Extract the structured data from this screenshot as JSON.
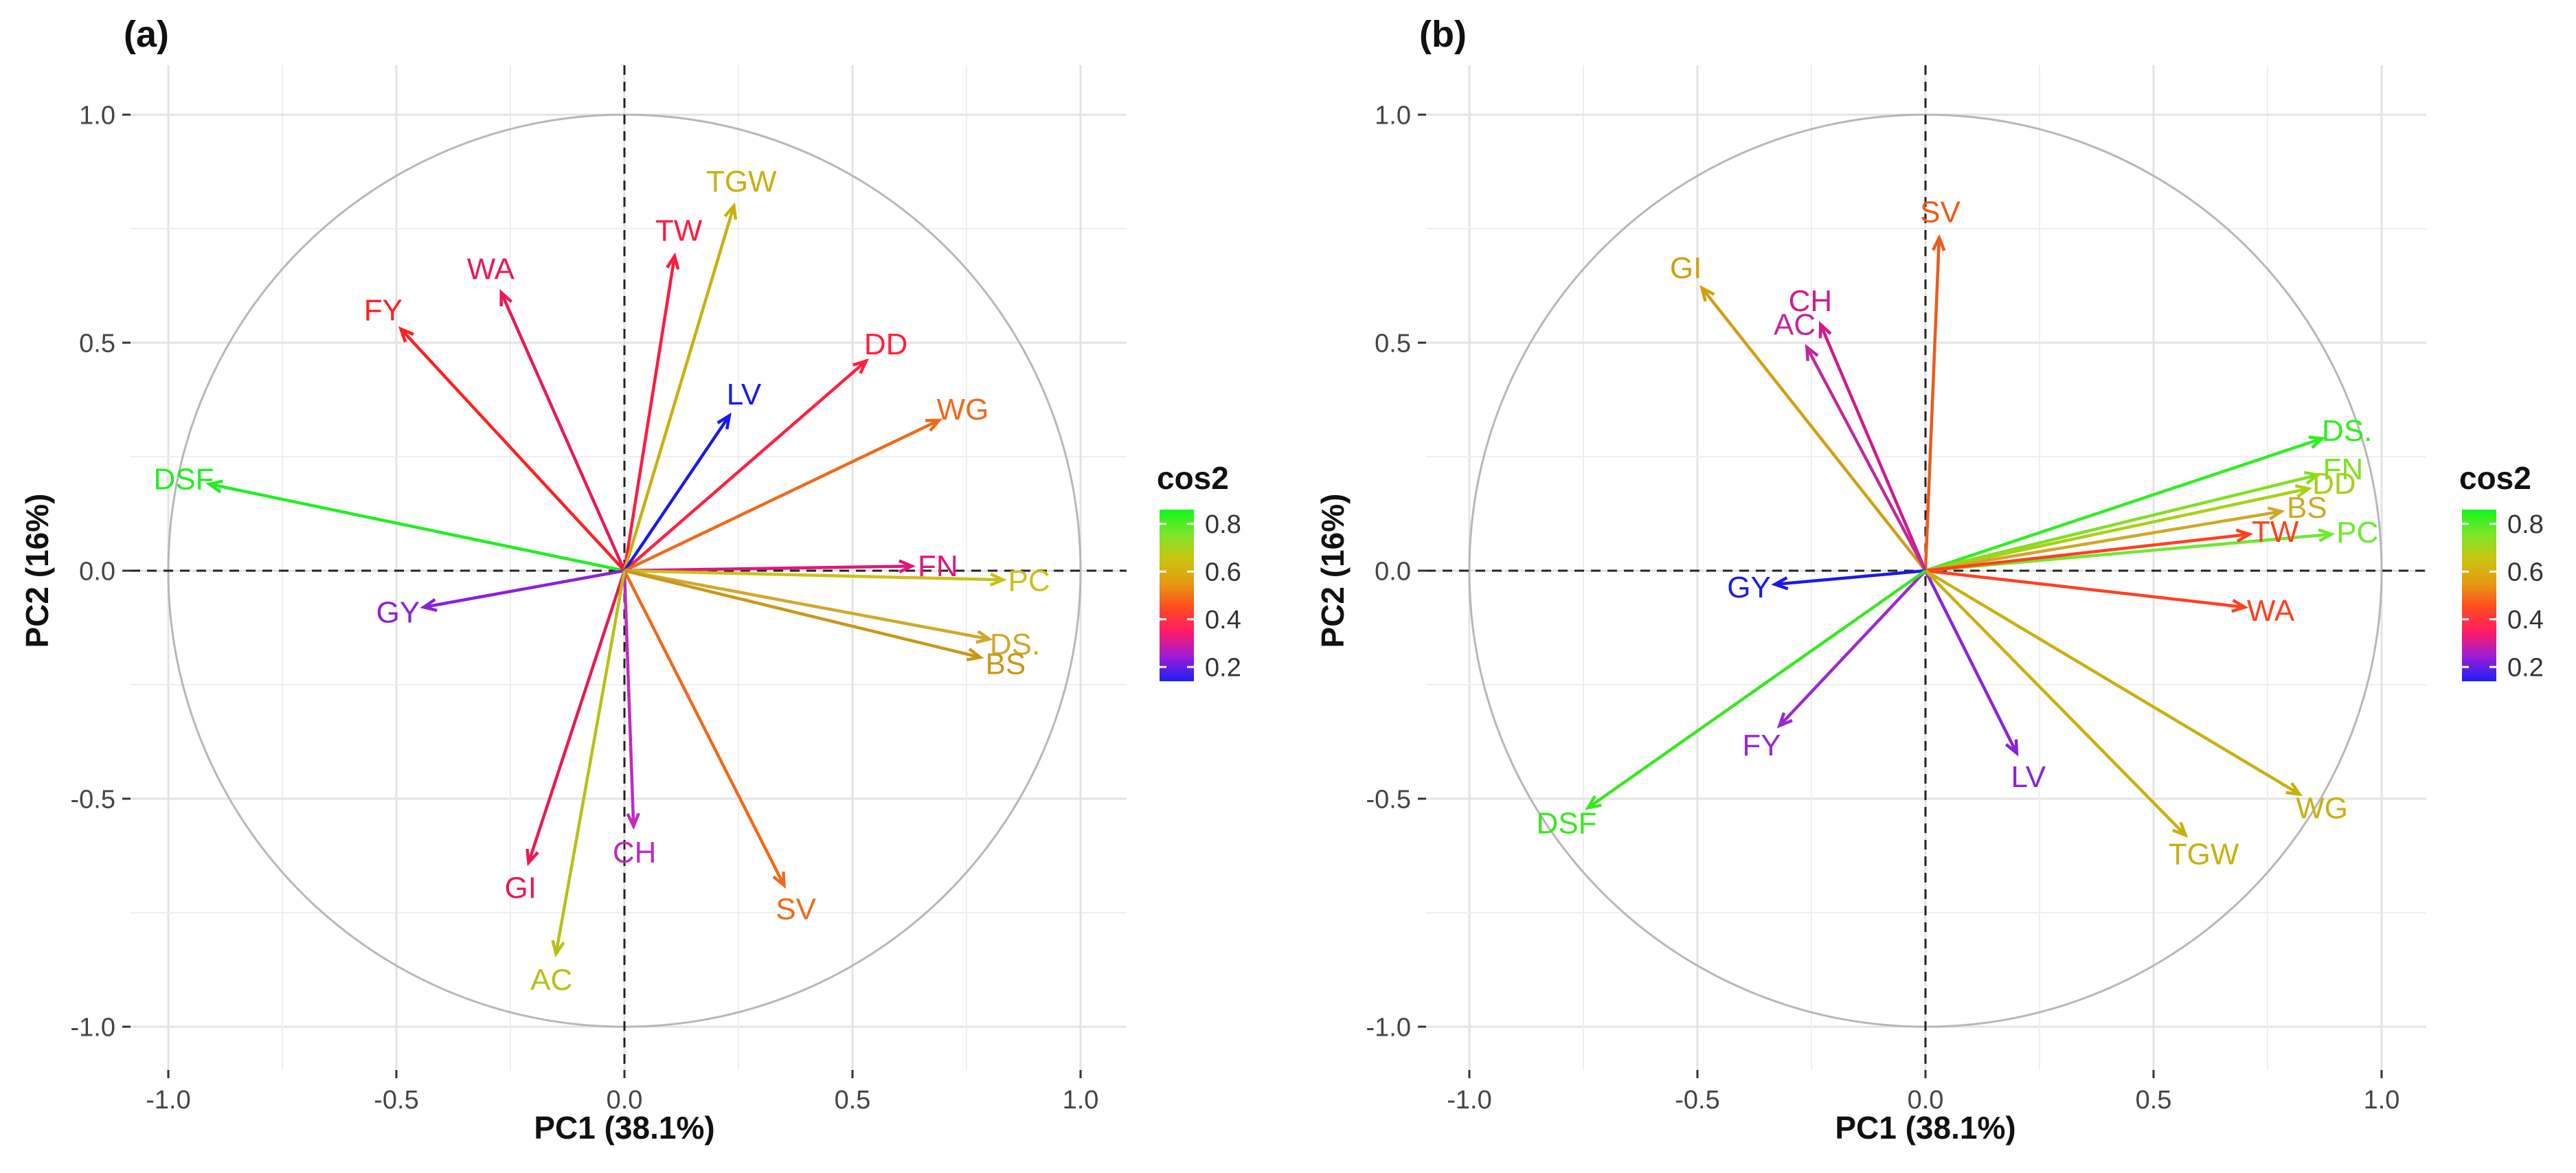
{
  "colorbar": {
    "title": "cos2",
    "ticks": [
      "0.8",
      "0.6",
      "0.4",
      "0.2"
    ],
    "tick_values": [
      0.8,
      0.6,
      0.4,
      0.2
    ],
    "range": [
      0.14,
      0.86
    ],
    "gradient": [
      "#1d1ff5",
      "#9b1cd8",
      "#ff1a6a",
      "#ff4b1e",
      "#e59a10",
      "#c9c510",
      "#7be62b",
      "#14f51c"
    ]
  },
  "chart_data": [
    {
      "type": "pca-variable-correlation-circle",
      "panel_label": "(a)",
      "xlabel": "PC1 (38.1%)",
      "ylabel": "PC2 (16%)",
      "xlim": [
        -1.0,
        1.0
      ],
      "ylim": [
        -1.0,
        1.0
      ],
      "xticks": [
        "-1.0",
        "-0.5",
        "0.0",
        "0.5",
        "1.0"
      ],
      "yticks": [
        "-1.0",
        "-0.5",
        "0.0",
        "0.5",
        "1.0"
      ],
      "color_metric": "cos2",
      "vectors": [
        {
          "name": "DSF",
          "x": -0.91,
          "y": 0.19,
          "cos2": 0.85,
          "color": "#22ee22"
        },
        {
          "name": "FY",
          "x": -0.49,
          "y": 0.53,
          "cos2": 0.46,
          "color": "#ff2020"
        },
        {
          "name": "WA",
          "x": -0.27,
          "y": 0.61,
          "cos2": 0.41,
          "color": "#e81a55"
        },
        {
          "name": "TW",
          "x": 0.11,
          "y": 0.69,
          "cos2": 0.43,
          "color": "#ff1a40"
        },
        {
          "name": "TGW",
          "x": 0.24,
          "y": 0.8,
          "cos2": 0.63,
          "color": "#c8b010"
        },
        {
          "name": "DD",
          "x": 0.53,
          "y": 0.46,
          "cos2": 0.46,
          "color": "#ff2040"
        },
        {
          "name": "LV",
          "x": 0.23,
          "y": 0.34,
          "cos2": 0.14,
          "color": "#1a1ae8"
        },
        {
          "name": "WG",
          "x": 0.69,
          "y": 0.33,
          "cos2": 0.56,
          "color": "#ee6a1a"
        },
        {
          "name": "FN",
          "x": 0.63,
          "y": 0.01,
          "cos2": 0.39,
          "color": "#e0167a"
        },
        {
          "name": "PC",
          "x": 0.83,
          "y": -0.02,
          "cos2": 0.68,
          "color": "#ccc01a"
        },
        {
          "name": "DS.",
          "x": 0.8,
          "y": -0.15,
          "cos2": 0.66,
          "color": "#d0a82a"
        },
        {
          "name": "BS",
          "x": 0.78,
          "y": -0.19,
          "cos2": 0.64,
          "color": "#c8981a"
        },
        {
          "name": "GY",
          "x": -0.44,
          "y": -0.08,
          "cos2": 0.21,
          "color": "#8a22d8"
        },
        {
          "name": "CH",
          "x": 0.02,
          "y": -0.56,
          "cos2": 0.31,
          "color": "#c02ac0"
        },
        {
          "name": "GI",
          "x": -0.21,
          "y": -0.64,
          "cos2": 0.46,
          "color": "#e81a50"
        },
        {
          "name": "SV",
          "x": 0.35,
          "y": -0.69,
          "cos2": 0.59,
          "color": "#ee6a1a"
        },
        {
          "name": "AC",
          "x": -0.15,
          "y": -0.84,
          "cos2": 0.73,
          "color": "#b8c015"
        }
      ]
    },
    {
      "type": "pca-variable-correlation-circle",
      "panel_label": "(b)",
      "xlabel": "PC1 (38.1%)",
      "ylabel": "PC2 (16%)",
      "xlim": [
        -1.0,
        1.0
      ],
      "ylim": [
        -1.0,
        1.0
      ],
      "xticks": [
        "-1.0",
        "-0.5",
        "0.0",
        "0.5",
        "1.0"
      ],
      "yticks": [
        "-1.0",
        "-0.5",
        "0.0",
        "0.5",
        "1.0"
      ],
      "color_metric": "cos2",
      "vectors": [
        {
          "name": "SV",
          "x": 0.03,
          "y": 0.73,
          "cos2": 0.53,
          "color": "#ee5a1a"
        },
        {
          "name": "GI",
          "x": -0.49,
          "y": 0.62,
          "cos2": 0.62,
          "color": "#d0a010"
        },
        {
          "name": "CH",
          "x": -0.23,
          "y": 0.54,
          "cos2": 0.35,
          "color": "#d01a8a"
        },
        {
          "name": "AC",
          "x": -0.26,
          "y": 0.49,
          "cos2": 0.31,
          "color": "#c02a9a"
        },
        {
          "name": "DS.",
          "x": 0.87,
          "y": 0.29,
          "cos2": 0.84,
          "color": "#30ee20"
        },
        {
          "name": "FN",
          "x": 0.86,
          "y": 0.21,
          "cos2": 0.78,
          "color": "#80e020"
        },
        {
          "name": "DD",
          "x": 0.84,
          "y": 0.18,
          "cos2": 0.74,
          "color": "#a8d018"
        },
        {
          "name": "BS",
          "x": 0.78,
          "y": 0.13,
          "cos2": 0.63,
          "color": "#d0a828"
        },
        {
          "name": "PC",
          "x": 0.89,
          "y": 0.08,
          "cos2": 0.8,
          "color": "#70e830"
        },
        {
          "name": "TW",
          "x": 0.71,
          "y": 0.08,
          "cos2": 0.51,
          "color": "#ff4020"
        },
        {
          "name": "WA",
          "x": 0.7,
          "y": -0.08,
          "cos2": 0.5,
          "color": "#ff4020"
        },
        {
          "name": "GY",
          "x": -0.33,
          "y": -0.03,
          "cos2": 0.11,
          "color": "#1a1ae8"
        },
        {
          "name": "FY",
          "x": -0.32,
          "y": -0.34,
          "cos2": 0.22,
          "color": "#9a28d0"
        },
        {
          "name": "LV",
          "x": 0.2,
          "y": -0.4,
          "cos2": 0.2,
          "color": "#8a22d8"
        },
        {
          "name": "WG",
          "x": 0.82,
          "y": -0.49,
          "cos2": 0.66,
          "color": "#c8b010"
        },
        {
          "name": "TGW",
          "x": 0.57,
          "y": -0.58,
          "cos2": 0.66,
          "color": "#c8b010"
        },
        {
          "name": "DSF",
          "x": -0.74,
          "y": -0.52,
          "cos2": 0.82,
          "color": "#38e820"
        }
      ]
    }
  ]
}
